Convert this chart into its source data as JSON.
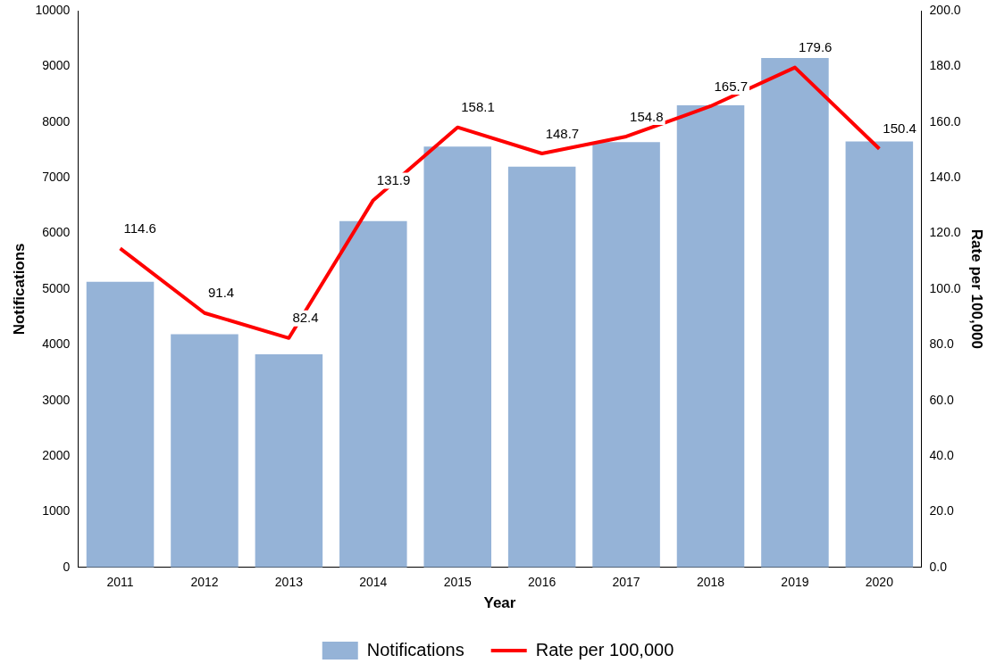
{
  "chart_data": {
    "type": "bar",
    "xlabel": "Year",
    "ylabel": "Notifications",
    "y2label": "Rate per 100,000",
    "categories": [
      "2011",
      "2012",
      "2013",
      "2014",
      "2015",
      "2016",
      "2017",
      "2018",
      "2019",
      "2020"
    ],
    "series": [
      {
        "name": "Notifications",
        "color": "#95b3d7",
        "values": [
          5130,
          4190,
          3830,
          6220,
          7560,
          7200,
          7640,
          8300,
          9150,
          7650
        ]
      },
      {
        "name": "Rate per 100,000",
        "type": "line",
        "axis": "y2",
        "color": "#ff0000",
        "values": [
          114.6,
          91.4,
          82.4,
          131.9,
          158.1,
          148.7,
          154.8,
          165.7,
          179.6,
          150.4
        ],
        "value_labels": [
          "114.6",
          "91.4",
          "82.4",
          "131.9",
          "158.1",
          "148.7",
          "154.8",
          "165.7",
          "179.6",
          "150.4"
        ]
      }
    ],
    "ylim": [
      0,
      10000
    ],
    "yticks": [
      0,
      1000,
      2000,
      3000,
      4000,
      5000,
      6000,
      7000,
      8000,
      9000,
      10000
    ],
    "y2lim": [
      0,
      200
    ],
    "y2ticks": [
      {
        "value": 0,
        "label": "0.0"
      },
      {
        "value": 20,
        "label": "20.0"
      },
      {
        "value": 40,
        "label": "40.0"
      },
      {
        "value": 60,
        "label": "60.0"
      },
      {
        "value": 80,
        "label": "80.0"
      },
      {
        "value": 100,
        "label": "100.0"
      },
      {
        "value": 120,
        "label": "120.0"
      },
      {
        "value": 140,
        "label": "140.0"
      },
      {
        "value": 160,
        "label": "160.0"
      },
      {
        "value": 180,
        "label": "180.0"
      },
      {
        "value": 200,
        "label": "200.0"
      }
    ],
    "grid": false,
    "legend": "bottom",
    "marker": "none",
    "line_style": "solid"
  }
}
